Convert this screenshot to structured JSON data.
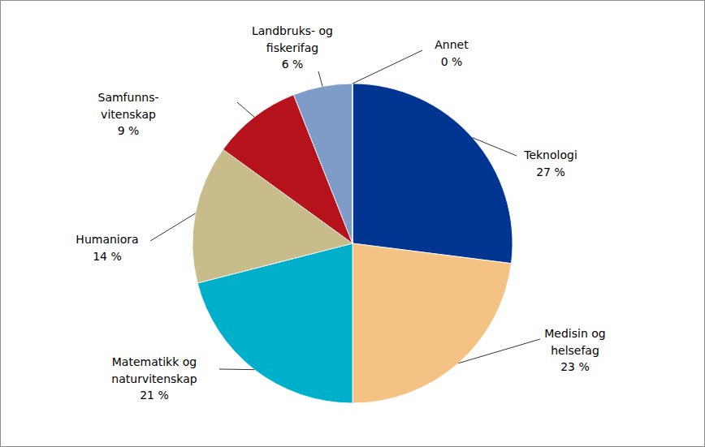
{
  "chart_data": {
    "type": "pie",
    "categories": [
      "Teknologi",
      "Medisin og\nhelsefag",
      "Matematikk og\nnaturvitenskap",
      "Humaniora",
      "Samfunns-\nvitenskap",
      "Landbruks- og\nfiskerifag",
      "Annet"
    ],
    "values": [
      27,
      23,
      21,
      14,
      9,
      6,
      0
    ],
    "value_labels": [
      "27 %",
      "23 %",
      "21 %",
      "14 %",
      "9 %",
      "6 %",
      "0 %"
    ],
    "colors": [
      "#003591",
      "#f4c283",
      "#00afca",
      "#c8bc8a",
      "#b5121b",
      "#7f9cc8",
      "#a6a6a6"
    ],
    "data_labels": true
  }
}
